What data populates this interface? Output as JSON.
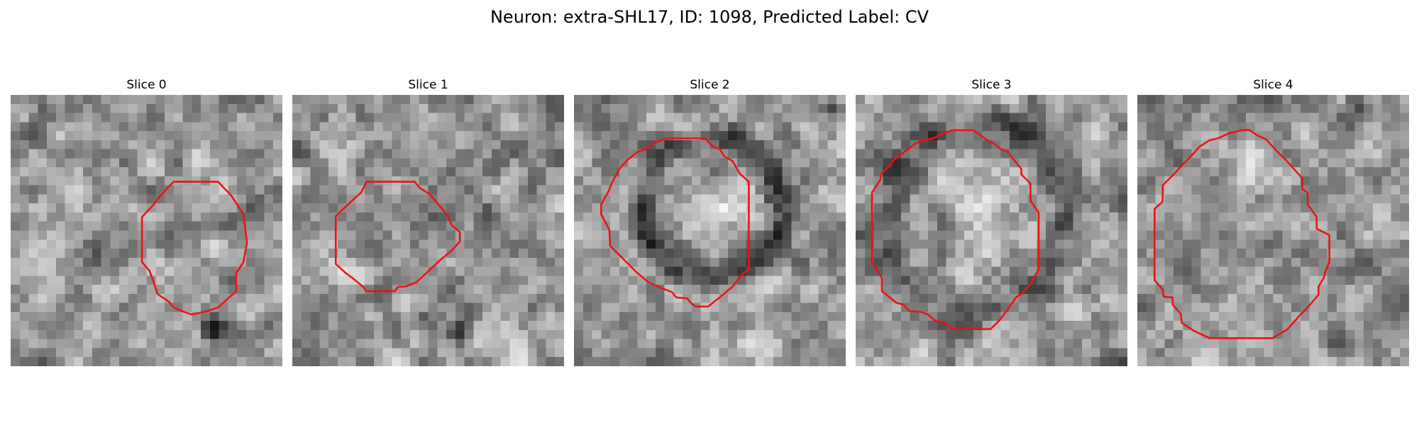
{
  "figure": {
    "title": "Neuron: extra-SHL17, ID: 1098, Predicted Label: CV",
    "contour_color": "#ee1111",
    "colormap": "grayscale"
  },
  "panels": [
    {
      "title": "Slice 0",
      "seed": 11,
      "blobs": [
        [
          0.74,
          0.86,
          0.06,
          -120
        ],
        [
          0.32,
          0.62,
          0.1,
          -55
        ],
        [
          0.62,
          0.55,
          0.12,
          -40
        ],
        [
          0.85,
          0.3,
          0.08,
          -30
        ],
        [
          0.05,
          0.6,
          0.06,
          30
        ]
      ]
    },
    {
      "title": "Slice 1",
      "seed": 23,
      "blobs": [
        [
          0.48,
          0.47,
          0.16,
          -60
        ],
        [
          0.55,
          0.75,
          0.12,
          -50
        ],
        [
          0.2,
          0.65,
          0.1,
          35
        ],
        [
          0.62,
          0.88,
          0.06,
          -90
        ],
        [
          0.82,
          0.45,
          0.1,
          35
        ]
      ]
    },
    {
      "title": "Slice 2",
      "seed": 37,
      "ring": [
        0.5,
        0.42,
        0.26,
        0.07,
        -90
      ],
      "blobs": [
        [
          0.5,
          0.42,
          0.2,
          40
        ],
        [
          0.85,
          0.85,
          0.12,
          -20
        ],
        [
          0.95,
          0.05,
          0.05,
          -90
        ]
      ]
    },
    {
      "title": "Slice 3",
      "seed": 41,
      "ring": [
        0.44,
        0.45,
        0.34,
        0.1,
        -55
      ],
      "blobs": [
        [
          0.45,
          0.4,
          0.24,
          45
        ],
        [
          0.8,
          0.82,
          0.1,
          30
        ],
        [
          0.88,
          0.2,
          0.08,
          25
        ]
      ]
    },
    {
      "title": "Slice 4",
      "seed": 53,
      "blobs": [
        [
          0.38,
          0.3,
          0.16,
          45
        ],
        [
          0.46,
          0.72,
          0.2,
          20
        ],
        [
          0.85,
          0.65,
          0.08,
          -70
        ],
        [
          0.8,
          0.08,
          0.08,
          -80
        ],
        [
          0.1,
          0.45,
          0.06,
          -50
        ]
      ]
    }
  ]
}
